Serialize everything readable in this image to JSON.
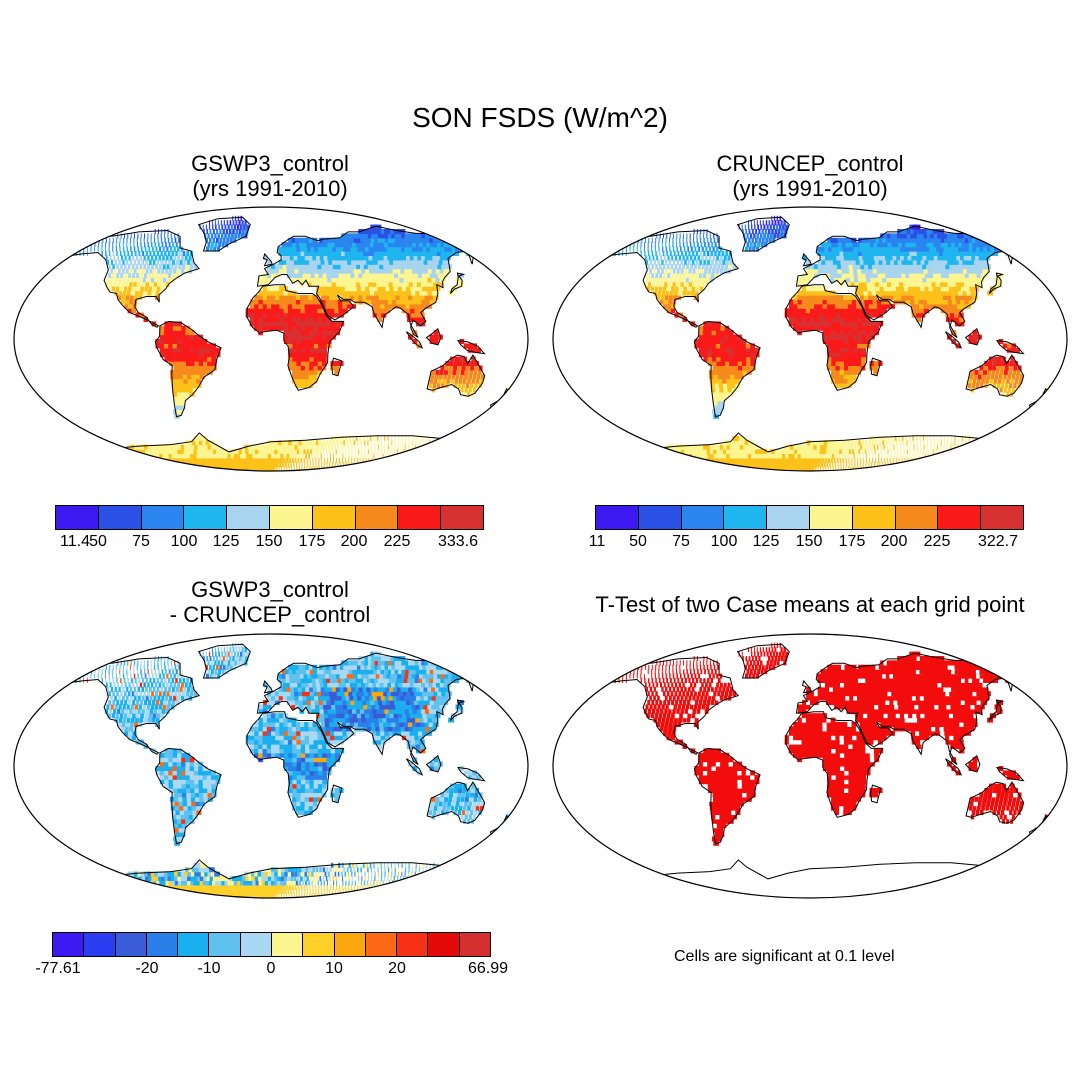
{
  "figure_title": "SON FSDS (W/m^2)",
  "panels": [
    {
      "id": "gswp3",
      "title_line1": "GSWP3_control",
      "title_line2": "(yrs 1991-2010)"
    },
    {
      "id": "cruncep",
      "title_line1": "CRUNCEP_control",
      "title_line2": "(yrs 1991-2010)"
    },
    {
      "id": "diff",
      "title_line1": "GSWP3_control",
      "title_line2": "- CRUNCEP_control"
    },
    {
      "id": "ttest",
      "title_line1": "T-Test of two Case means at each grid point",
      "title_line2": ""
    }
  ],
  "colorbars": {
    "abs": {
      "colors": [
        "#3d19f2",
        "#2b50e6",
        "#2a85f0",
        "#1fb6ef",
        "#a8d4ef",
        "#fdf58f",
        "#fcc21a",
        "#f78a1c",
        "#fa1a1a",
        "#d83131"
      ]
    },
    "gswp3_labels": [
      "11.4",
      "50",
      "75",
      "100",
      "125",
      "150",
      "175",
      "200",
      "225",
      "333.6"
    ],
    "cruncep_labels": [
      "11",
      "50",
      "75",
      "100",
      "125",
      "150",
      "175",
      "200",
      "225",
      "322.7"
    ],
    "diff": {
      "colors": [
        "#3d19f2",
        "#2b3df0",
        "#3b5cd8",
        "#2b7fe8",
        "#1ab0f0",
        "#5fc2ee",
        "#a8d8f2",
        "#fdf58f",
        "#ffd02a",
        "#fba70e",
        "#fc6a15",
        "#f53216",
        "#e30a0a",
        "#d53030"
      ],
      "labels": [
        "-77.61",
        "-20",
        "-10",
        "0",
        "10",
        "20",
        "66.99"
      ]
    }
  },
  "ttest_note": "Cells are significant at 0.1 level",
  "map_palettes": {
    "ocean": "#ffffff",
    "coast": "#000000",
    "ttest_sig": "#f20c0c",
    "ttest_nonsig": "#ffffff"
  }
}
